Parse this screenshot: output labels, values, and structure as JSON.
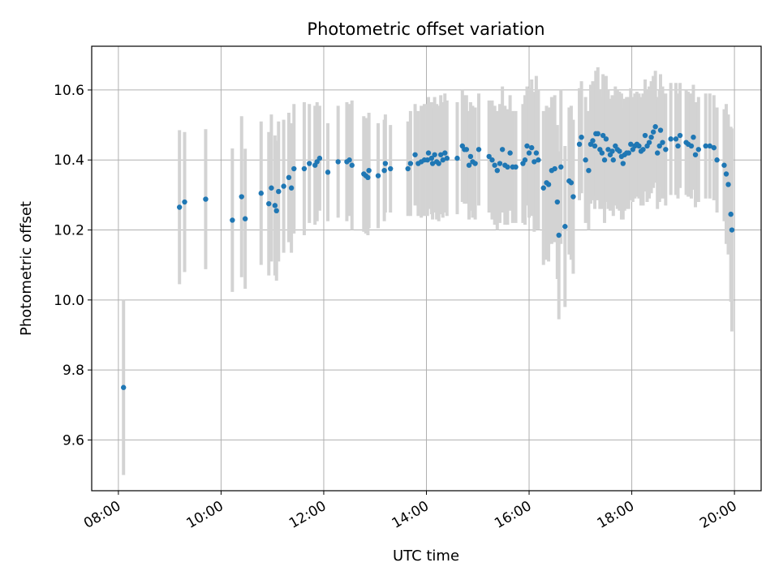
{
  "chart_data": {
    "type": "scatter",
    "title": "Photometric offset variation",
    "xlabel": "UTC time",
    "ylabel": "Photometric offset",
    "x_unit": "hours UTC",
    "xlim": [
      7.48,
      20.52
    ],
    "ylim": [
      9.455,
      10.725
    ],
    "x_ticks": [
      8,
      10,
      12,
      14,
      16,
      18,
      20
    ],
    "x_tick_labels": [
      "08:00",
      "10:00",
      "12:00",
      "14:00",
      "16:00",
      "18:00",
      "20:00"
    ],
    "y_ticks": [
      9.6,
      9.8,
      10.0,
      10.2,
      10.4,
      10.6
    ],
    "y_tick_labels": [
      "9.6",
      "9.8",
      "10.0",
      "10.2",
      "10.4",
      "10.6"
    ],
    "grid": true,
    "legend": null,
    "point_color": "#1f77b4",
    "errorbar_color": "#d3d3d3",
    "series": [
      {
        "x": [
          8.1,
          9.19,
          9.29,
          9.7,
          10.22,
          10.4,
          10.47,
          10.78,
          10.93,
          10.98,
          11.05,
          11.08,
          11.12,
          11.22,
          11.32,
          11.37,
          11.42,
          11.62,
          11.72,
          11.83,
          11.87,
          11.92,
          12.08,
          12.28,
          12.45,
          12.5,
          12.55,
          12.78,
          12.82,
          12.86,
          12.88,
          13.06,
          13.18,
          13.2,
          13.3,
          13.64,
          13.69,
          13.78,
          13.84,
          13.9,
          13.96,
          14.02,
          14.04,
          14.1,
          14.12,
          14.16,
          14.2,
          14.24,
          14.28,
          14.32,
          14.36,
          14.4,
          14.6,
          14.7,
          14.74,
          14.78,
          14.83,
          14.86,
          14.9,
          14.95,
          15.02,
          15.22,
          15.28,
          15.33,
          15.38,
          15.43,
          15.48,
          15.53,
          15.58,
          15.63,
          15.68,
          15.74,
          15.88,
          15.92,
          15.96,
          16.0,
          16.05,
          16.1,
          16.14,
          16.18,
          16.28,
          16.34,
          16.38,
          16.44,
          16.5,
          16.55,
          16.58,
          16.62,
          16.7,
          16.78,
          16.82,
          16.86,
          16.98,
          17.02,
          17.1,
          17.16,
          17.2,
          17.24,
          17.28,
          17.3,
          17.34,
          17.38,
          17.42,
          17.44,
          17.47,
          17.5,
          17.54,
          17.58,
          17.62,
          17.64,
          17.68,
          17.72,
          17.76,
          17.8,
          17.83,
          17.86,
          17.9,
          17.94,
          17.98,
          18.02,
          18.06,
          18.1,
          18.14,
          18.18,
          18.22,
          18.26,
          18.3,
          18.34,
          18.38,
          18.42,
          18.46,
          18.5,
          18.54,
          18.56,
          18.6,
          18.66,
          18.76,
          18.86,
          18.9,
          18.94,
          19.06,
          19.1,
          19.16,
          19.2,
          19.24,
          19.3,
          19.44,
          19.52,
          19.6,
          19.66,
          19.8,
          19.84,
          19.88,
          19.93,
          19.95
        ],
        "y": [
          9.75,
          10.265,
          10.28,
          10.288,
          10.228,
          10.295,
          10.232,
          10.305,
          10.275,
          10.32,
          10.27,
          10.255,
          10.31,
          10.325,
          10.35,
          10.32,
          10.375,
          10.375,
          10.39,
          10.385,
          10.395,
          10.405,
          10.365,
          10.395,
          10.395,
          10.4,
          10.385,
          10.36,
          10.355,
          10.35,
          10.37,
          10.355,
          10.37,
          10.39,
          10.375,
          10.375,
          10.39,
          10.415,
          10.39,
          10.395,
          10.4,
          10.4,
          10.42,
          10.405,
          10.39,
          10.415,
          10.395,
          10.39,
          10.415,
          10.4,
          10.42,
          10.405,
          10.405,
          10.44,
          10.43,
          10.43,
          10.385,
          10.41,
          10.395,
          10.39,
          10.43,
          10.41,
          10.4,
          10.385,
          10.37,
          10.39,
          10.43,
          10.385,
          10.38,
          10.42,
          10.38,
          10.38,
          10.39,
          10.4,
          10.44,
          10.42,
          10.435,
          10.395,
          10.42,
          10.4,
          10.32,
          10.335,
          10.33,
          10.37,
          10.375,
          10.28,
          10.185,
          10.38,
          10.21,
          10.34,
          10.335,
          10.295,
          10.445,
          10.465,
          10.4,
          10.37,
          10.445,
          10.455,
          10.44,
          10.475,
          10.475,
          10.43,
          10.42,
          10.47,
          10.4,
          10.46,
          10.43,
          10.415,
          10.425,
          10.4,
          10.44,
          10.43,
          10.425,
          10.41,
          10.39,
          10.415,
          10.42,
          10.42,
          10.445,
          10.43,
          10.44,
          10.445,
          10.44,
          10.425,
          10.43,
          10.47,
          10.44,
          10.45,
          10.465,
          10.48,
          10.495,
          10.42,
          10.44,
          10.485,
          10.45,
          10.43,
          10.46,
          10.46,
          10.44,
          10.47,
          10.45,
          10.445,
          10.44,
          10.465,
          10.415,
          10.43,
          10.44,
          10.44,
          10.435,
          10.4,
          10.385,
          10.36,
          10.33,
          10.245,
          10.2
        ],
        "yerr": [
          0.25,
          0.22,
          0.2,
          0.2,
          0.205,
          0.23,
          0.2,
          0.205,
          0.205,
          0.21,
          0.2,
          0.2,
          0.2,
          0.19,
          0.185,
          0.185,
          0.185,
          0.19,
          0.17,
          0.17,
          0.17,
          0.15,
          0.14,
          0.16,
          0.17,
          0.16,
          0.185,
          0.165,
          0.165,
          0.165,
          0.165,
          0.15,
          0.145,
          0.14,
          0.125,
          0.135,
          0.15,
          0.145,
          0.15,
          0.16,
          0.16,
          0.16,
          0.16,
          0.16,
          0.16,
          0.165,
          0.165,
          0.165,
          0.17,
          0.165,
          0.17,
          0.165,
          0.16,
          0.16,
          0.155,
          0.155,
          0.155,
          0.155,
          0.16,
          0.16,
          0.16,
          0.16,
          0.17,
          0.17,
          0.17,
          0.17,
          0.18,
          0.17,
          0.165,
          0.165,
          0.16,
          0.16,
          0.17,
          0.185,
          0.17,
          0.185,
          0.195,
          0.2,
          0.22,
          0.2,
          0.22,
          0.22,
          0.22,
          0.21,
          0.21,
          0.22,
          0.24,
          0.22,
          0.23,
          0.21,
          0.22,
          0.22,
          0.16,
          0.16,
          0.18,
          0.17,
          0.17,
          0.17,
          0.18,
          0.18,
          0.19,
          0.17,
          0.16,
          0.175,
          0.18,
          0.18,
          0.17,
          0.16,
          0.16,
          0.16,
          0.17,
          0.17,
          0.17,
          0.18,
          0.16,
          0.16,
          0.16,
          0.16,
          0.16,
          0.15,
          0.15,
          0.15,
          0.15,
          0.155,
          0.16,
          0.16,
          0.16,
          0.16,
          0.16,
          0.16,
          0.16,
          0.16,
          0.16,
          0.16,
          0.16,
          0.16,
          0.16,
          0.16,
          0.15,
          0.15,
          0.15,
          0.15,
          0.15,
          0.15,
          0.15,
          0.15,
          0.15,
          0.15,
          0.15,
          0.15,
          0.16,
          0.2,
          0.2,
          0.25,
          0.29
        ]
      }
    ]
  }
}
